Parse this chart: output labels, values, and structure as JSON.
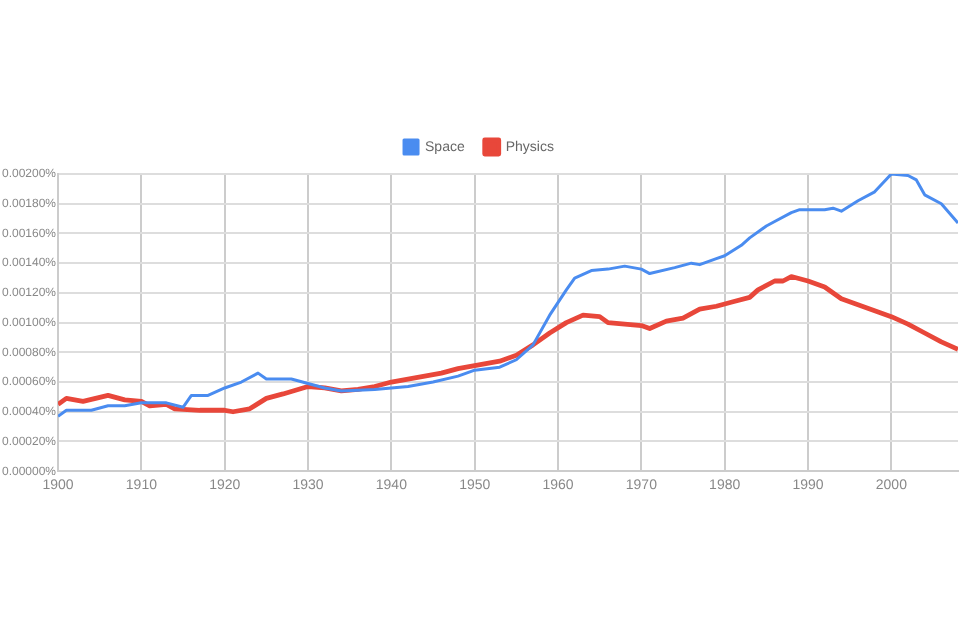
{
  "chart_data": {
    "type": "line",
    "legend": "top",
    "grid": true,
    "marker": "none",
    "xlim": [
      1900,
      2008
    ],
    "xticks": [
      1900,
      1910,
      1920,
      1930,
      1940,
      1950,
      1960,
      1970,
      1980,
      1990,
      2000
    ],
    "ylim": [
      0,
      0.002
    ],
    "yticks": [
      {
        "value": 0,
        "label": "0.00000%"
      },
      {
        "value": 0.0002,
        "label": "0.00020%"
      },
      {
        "value": 0.0004,
        "label": "0.00040%"
      },
      {
        "value": 0.0006,
        "label": "0.00060%"
      },
      {
        "value": 0.0008,
        "label": "0.00080%"
      },
      {
        "value": 0.001,
        "label": "0.00100%"
      },
      {
        "value": 0.0012,
        "label": "0.00120%"
      },
      {
        "value": 0.0014,
        "label": "0.00140%"
      },
      {
        "value": 0.0016,
        "label": "0.00160%"
      },
      {
        "value": 0.0018,
        "label": "0.00180%"
      },
      {
        "value": 0.002,
        "label": "0.00200%"
      }
    ],
    "series": [
      {
        "name": "Space",
        "color": "#4a8cf0",
        "x": [
          1900,
          1901,
          1904,
          1906,
          1908,
          1910,
          1913,
          1915,
          1916,
          1918,
          1920,
          1922,
          1924,
          1925,
          1928,
          1930,
          1932,
          1934,
          1938,
          1940,
          1942,
          1945,
          1948,
          1950,
          1953,
          1955,
          1957,
          1959,
          1961,
          1962,
          1964,
          1966,
          1968,
          1970,
          1971,
          1974,
          1976,
          1977,
          1979,
          1980,
          1982,
          1983,
          1985,
          1986,
          1988,
          1989,
          1992,
          1993,
          1994,
          1996,
          1998,
          2000,
          2002,
          2003,
          2004,
          2006,
          2008
        ],
        "values": [
          0.00037,
          0.00041,
          0.00041,
          0.00044,
          0.00044,
          0.00046,
          0.00046,
          0.00043,
          0.00051,
          0.00051,
          0.00056,
          0.0006,
          0.00066,
          0.00062,
          0.00062,
          0.00059,
          0.00056,
          0.00054,
          0.00055,
          0.00056,
          0.00057,
          0.0006,
          0.00064,
          0.00068,
          0.0007,
          0.00075,
          0.00085,
          0.00105,
          0.00122,
          0.0013,
          0.00135,
          0.00136,
          0.00138,
          0.00136,
          0.00133,
          0.00137,
          0.0014,
          0.00139,
          0.00143,
          0.00145,
          0.00152,
          0.00157,
          0.00165,
          0.00168,
          0.00174,
          0.00176,
          0.00176,
          0.00177,
          0.00175,
          0.00182,
          0.00188,
          0.002,
          0.00199,
          0.00196,
          0.00186,
          0.0018,
          0.00167
        ]
      },
      {
        "name": "Physics",
        "color": "#e8473a",
        "x": [
          1900,
          1901,
          1903,
          1906,
          1908,
          1910,
          1911,
          1913,
          1914,
          1917,
          1920,
          1921,
          1923,
          1925,
          1927,
          1930,
          1932,
          1934,
          1936,
          1938,
          1940,
          1943,
          1946,
          1948,
          1950,
          1953,
          1955,
          1957,
          1959,
          1961,
          1963,
          1965,
          1966,
          1970,
          1971,
          1973,
          1975,
          1977,
          1979,
          1981,
          1983,
          1984,
          1986,
          1987,
          1988,
          1990,
          1992,
          1994,
          1996,
          1998,
          2000,
          2002,
          2004,
          2006,
          2008
        ],
        "values": [
          0.00045,
          0.00049,
          0.00047,
          0.00051,
          0.00048,
          0.00047,
          0.00044,
          0.00045,
          0.00042,
          0.00041,
          0.00041,
          0.0004,
          0.00042,
          0.00049,
          0.00052,
          0.00057,
          0.00056,
          0.00054,
          0.00055,
          0.00057,
          0.0006,
          0.00063,
          0.00066,
          0.00069,
          0.00071,
          0.00074,
          0.00078,
          0.00085,
          0.00093,
          0.001,
          0.00105,
          0.00104,
          0.001,
          0.00098,
          0.00096,
          0.00101,
          0.00103,
          0.00109,
          0.00111,
          0.00114,
          0.00117,
          0.00122,
          0.00128,
          0.00128,
          0.00131,
          0.00128,
          0.00124,
          0.00116,
          0.00112,
          0.00108,
          0.00104,
          0.00099,
          0.00093,
          0.00087,
          0.00082
        ]
      }
    ]
  }
}
